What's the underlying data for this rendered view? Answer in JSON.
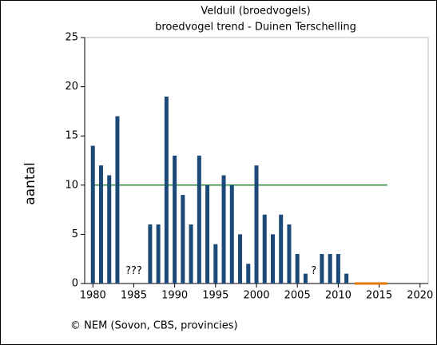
{
  "chart_data": {
    "type": "bar",
    "title": "Velduil (broedvogels)",
    "subtitle": "broedvogel trend - Duinen Terschelling",
    "y_label": "aantal",
    "footer": "© NEM (Sovon, CBS, provincies)",
    "x": [
      1980,
      1981,
      1982,
      1983,
      1984,
      1985,
      1986,
      1987,
      1988,
      1989,
      1990,
      1991,
      1992,
      1993,
      1994,
      1995,
      1996,
      1997,
      1998,
      1999,
      2000,
      2001,
      2002,
      2003,
      2004,
      2005,
      2006,
      2007,
      2008,
      2009,
      2010,
      2011,
      2012,
      2013,
      2014,
      2015,
      2016
    ],
    "values": [
      14,
      12,
      11,
      17,
      null,
      null,
      null,
      6,
      6,
      19,
      13,
      9,
      6,
      13,
      10,
      4,
      11,
      10,
      5,
      2,
      12,
      7,
      5,
      7,
      6,
      3,
      1,
      null,
      3,
      3,
      3,
      1,
      0,
      0,
      0,
      0,
      0
    ],
    "color": "#1b4a78",
    "zero_color": "#e07800",
    "trend": {
      "value": 10,
      "x": [
        1980,
        2016
      ],
      "color": "#2e8b3a"
    },
    "annotations": [
      {
        "text": "???",
        "x": 1985,
        "y": 1
      },
      {
        "text": "?",
        "x": 2007,
        "y": 1
      }
    ],
    "xlim": [
      1979,
      2021
    ],
    "ylim": [
      0,
      25
    ],
    "xticks": [
      1980,
      1985,
      1990,
      1995,
      2000,
      2005,
      2010,
      2015,
      2020
    ],
    "yticks": [
      0,
      5,
      10,
      15,
      20,
      25
    ]
  }
}
